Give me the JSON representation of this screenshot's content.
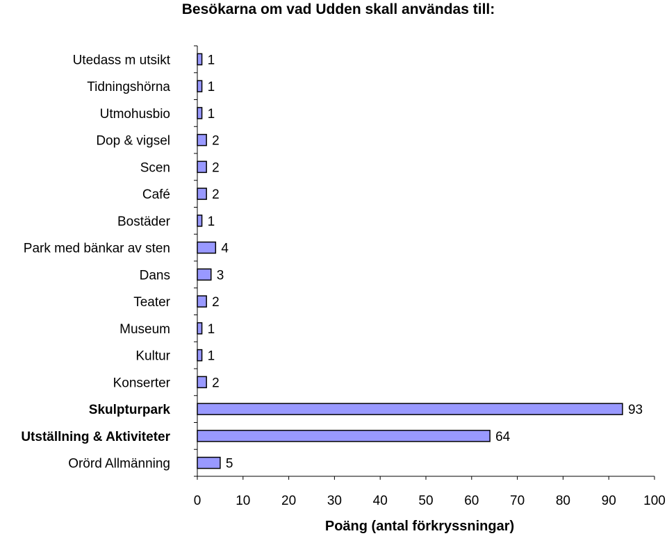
{
  "chart_data": {
    "type": "bar",
    "orientation": "horizontal",
    "title": "Besökarna om vad Udden skall användas till:",
    "xlabel": "Poäng (antal förkryssningar)",
    "ylabel": "",
    "xlim": [
      0,
      100
    ],
    "xticks": [
      "0",
      "10",
      "20",
      "30",
      "40",
      "50",
      "60",
      "70",
      "80",
      "90",
      "100"
    ],
    "grid": false,
    "bar_color": "#9999ff",
    "categories": [
      "Utedass m utsikt",
      "Tidningshörna",
      "Utmohusbio",
      "Dop & vigsel",
      "Scen",
      "Café",
      "Bostäder",
      "Park med bänkar av sten",
      "Dans",
      "Teater",
      "Museum",
      "Kultur",
      "Konserter",
      "Skulpturpark",
      "Utställning & Aktiviteter",
      "Orörd Allmänning"
    ],
    "bold_categories": [
      "Skulpturpark",
      "Utställning & Aktiviteter"
    ],
    "values": [
      1,
      1,
      1,
      2,
      2,
      2,
      1,
      4,
      3,
      2,
      1,
      1,
      2,
      93,
      64,
      5
    ],
    "value_labels": [
      "1",
      "1",
      "1",
      "2",
      "2",
      "2",
      "1",
      "4",
      "3",
      "2",
      "1",
      "1",
      "2",
      "93",
      "64",
      "5"
    ]
  }
}
